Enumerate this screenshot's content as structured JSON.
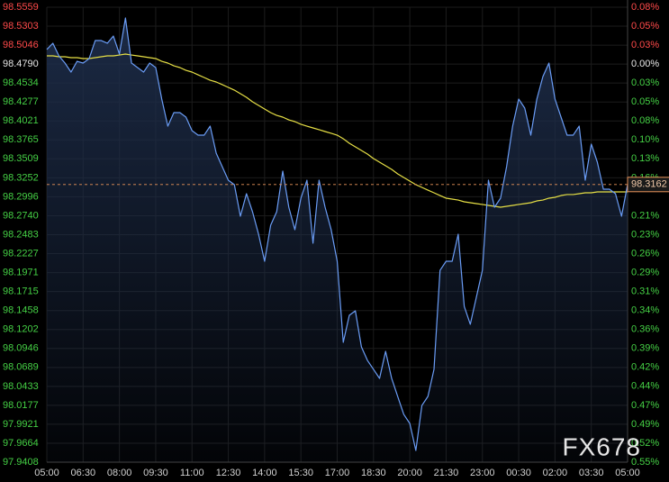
{
  "chart_data": {
    "type": "line",
    "categories": [
      "05:00",
      null,
      null,
      null,
      null,
      null,
      "06:30",
      null,
      null,
      null,
      null,
      null,
      "08:00",
      null,
      null,
      null,
      null,
      null,
      "09:30",
      null,
      null,
      null,
      null,
      null,
      "11:00",
      null,
      null,
      null,
      null,
      null,
      "12:30",
      null,
      null,
      null,
      null,
      null,
      "14:00",
      null,
      null,
      null,
      null,
      null,
      "15:30",
      null,
      null,
      null,
      null,
      null,
      "17:00",
      null,
      null,
      null,
      null,
      null,
      "18:30",
      null,
      null,
      null,
      null,
      null,
      "20:00",
      null,
      null,
      null,
      null,
      null,
      "21:30",
      null,
      null,
      null,
      null,
      null,
      "23:00",
      null,
      null,
      null,
      null,
      null,
      "00:30",
      null,
      null,
      null,
      null,
      null,
      "02:00",
      null,
      null,
      null,
      null,
      null,
      "03:30",
      null,
      null,
      null,
      null,
      null,
      "05:00"
    ],
    "series": [
      {
        "color": "#6a9cf5",
        "values": [
          98.4987,
          98.5072,
          98.4901,
          98.4804,
          98.4682,
          98.4828,
          98.4804,
          98.4865,
          98.5108,
          98.5108,
          98.5072,
          98.5169,
          98.4926,
          98.5413,
          98.4804,
          98.4743,
          98.4682,
          98.4804,
          98.4743,
          98.4317,
          98.3951,
          98.4134,
          98.4134,
          98.4073,
          98.389,
          98.3829,
          98.3829,
          98.3951,
          98.3586,
          98.3403,
          98.322,
          98.316,
          98.2733,
          98.3038,
          98.2794,
          98.249,
          98.2124,
          98.2611,
          98.2794,
          98.3342,
          98.2855,
          98.2551,
          98.2977,
          98.322,
          98.2368,
          98.322,
          98.2855,
          98.2551,
          98.2124,
          98.1028,
          98.1393,
          98.1454,
          98.0967,
          98.0784,
          98.0663,
          98.0541,
          98.0906,
          98.0541,
          98.0297,
          98.0054,
          97.9932,
          97.9566,
          98.0175,
          98.0297,
          98.0663,
          98.2002,
          98.2124,
          98.2124,
          98.249,
          98.1515,
          98.1272,
          98.1637,
          98.2002,
          98.322,
          98.2855,
          98.2977,
          98.3403,
          98.3951,
          98.4317,
          98.4195,
          98.3829,
          98.4317,
          98.4621,
          98.4804,
          98.4317,
          98.4073,
          98.3829,
          98.3829,
          98.3951,
          98.322,
          98.3708,
          98.3464,
          98.3099,
          98.3099,
          98.3038,
          98.2733,
          98.3162
        ]
      },
      {
        "color": "#e6df45",
        "values": [
          98.4901,
          98.4901,
          98.4889,
          98.4889,
          98.4877,
          98.4877,
          98.4865,
          98.4865,
          98.4877,
          98.4889,
          98.4901,
          98.4901,
          98.4913,
          98.4926,
          98.4913,
          98.4901,
          98.4889,
          98.4877,
          98.4865,
          98.4828,
          98.4804,
          98.4767,
          98.4743,
          98.4706,
          98.4682,
          98.4645,
          98.4609,
          98.4572,
          98.4548,
          98.4512,
          98.4475,
          98.4438,
          98.439,
          98.4341,
          98.428,
          98.4231,
          98.4183,
          98.4134,
          98.4097,
          98.4073,
          98.4036,
          98.4012,
          98.3976,
          98.3951,
          98.3927,
          98.3903,
          98.3878,
          98.3854,
          98.3829,
          98.3781,
          98.372,
          98.3671,
          98.3622,
          98.3574,
          98.3513,
          98.3464,
          98.3415,
          98.3367,
          98.3306,
          98.3257,
          98.3208,
          98.316,
          98.3123,
          98.3086,
          98.305,
          98.3013,
          98.2977,
          98.2965,
          98.2952,
          98.2928,
          98.2916,
          98.2904,
          98.2892,
          98.2879,
          98.2867,
          98.2855,
          98.2867,
          98.2879,
          98.2892,
          98.2904,
          98.2916,
          98.294,
          98.2952,
          98.2977,
          98.2989,
          98.3013,
          98.3026,
          98.3026,
          98.3038,
          98.305,
          98.305,
          98.3062,
          98.3062,
          98.3062,
          98.3062,
          98.3062,
          98.3062
        ]
      }
    ],
    "ylim": [
      97.9408,
      98.5559
    ],
    "yticks": [
      97.9408,
      97.9664,
      97.9921,
      98.0177,
      98.0433,
      98.0689,
      98.0946,
      98.1202,
      98.1458,
      98.1715,
      98.1971,
      98.2227,
      98.2483,
      {
        "value": 98.274,
        "label": "98.2740"
      },
      98.2996,
      98.3252,
      98.3509,
      98.3765,
      98.4021,
      98.4277,
      98.4534,
      {
        "value": 98.479,
        "label": "98.4790"
      },
      98.5046,
      98.5303,
      98.5559
    ],
    "y2lim": [
      -0.546,
      0.078
    ],
    "y2ticks": [
      {
        "value": -0.546,
        "label": "0.55%"
      },
      {
        "value": -0.52,
        "label": "0.52%"
      },
      {
        "value": -0.494,
        "label": "0.49%"
      },
      {
        "value": -0.468,
        "label": "0.47%"
      },
      {
        "value": -0.442,
        "label": "0.44%"
      },
      {
        "value": -0.416,
        "label": "0.42%"
      },
      {
        "value": -0.39,
        "label": "0.39%"
      },
      {
        "value": -0.364,
        "label": "0.36%"
      },
      {
        "value": -0.338,
        "label": "0.34%"
      },
      {
        "value": -0.312,
        "label": "0.31%"
      },
      {
        "value": -0.286,
        "label": "0.29%"
      },
      {
        "value": -0.26,
        "label": "0.26%"
      },
      {
        "value": -0.234,
        "label": "0.23%"
      },
      {
        "value": -0.208,
        "label": "0.21%"
      },
      {
        "value": -0.156,
        "label": "0.16%"
      },
      {
        "value": -0.13,
        "label": "0.13%"
      },
      {
        "value": -0.104,
        "label": "0.10%"
      },
      {
        "value": -0.078,
        "label": "0.08%"
      },
      {
        "value": -0.052,
        "label": "0.05%"
      },
      {
        "value": -0.026,
        "label": "0.03%"
      },
      {
        "value": 0,
        "label": "0.00%"
      },
      {
        "value": 0.026,
        "label": "0.03%"
      },
      {
        "value": 0.052,
        "label": "0.05%"
      },
      {
        "value": 0.078,
        "label": "0.08%"
      }
    ],
    "grid": true,
    "area_fill": "#1d2c48",
    "last_value_line": true,
    "last_value_color": "#e8935a",
    "up_color": "#ff4a4a",
    "down_color": "#45d045",
    "flat_color": "#e6e6e6"
  },
  "watermark": "FX678"
}
